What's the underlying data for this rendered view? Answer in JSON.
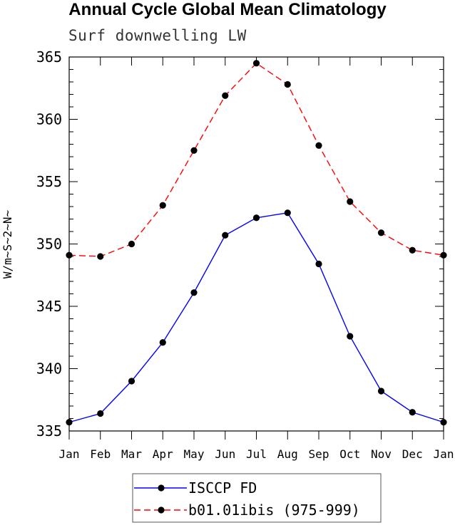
{
  "chart_data": {
    "type": "line",
    "title": "Annual Cycle Global Mean Climatology",
    "subtitle": "Surf downwelling LW",
    "ylabel": "W/m~S~2~N~",
    "xlabel": "",
    "categories": [
      "Jan",
      "Feb",
      "Mar",
      "Apr",
      "May",
      "Jun",
      "Jul",
      "Aug",
      "Sep",
      "Oct",
      "Nov",
      "Dec",
      "Jan"
    ],
    "ylim": [
      335,
      365
    ],
    "yticks": [
      335,
      340,
      345,
      350,
      355,
      360,
      365
    ],
    "ytick_labels": [
      "335",
      "340",
      "345",
      "350",
      "355",
      "360",
      "365"
    ],
    "grid": false,
    "legend_position": "bottom",
    "series": [
      {
        "name": "ISCCP FD",
        "color": "#0000ff",
        "dash": "solid",
        "values": [
          335.7,
          336.4,
          339.0,
          342.1,
          346.1,
          350.7,
          352.1,
          352.5,
          348.4,
          342.6,
          338.2,
          336.5,
          335.7
        ]
      },
      {
        "name": "b01.01ibis (975-999)",
        "color": "#ff0000",
        "dash": "dashed",
        "values": [
          349.1,
          349.0,
          350.0,
          353.1,
          357.5,
          361.9,
          364.5,
          362.8,
          357.9,
          353.4,
          350.9,
          349.5,
          349.1
        ]
      }
    ]
  }
}
